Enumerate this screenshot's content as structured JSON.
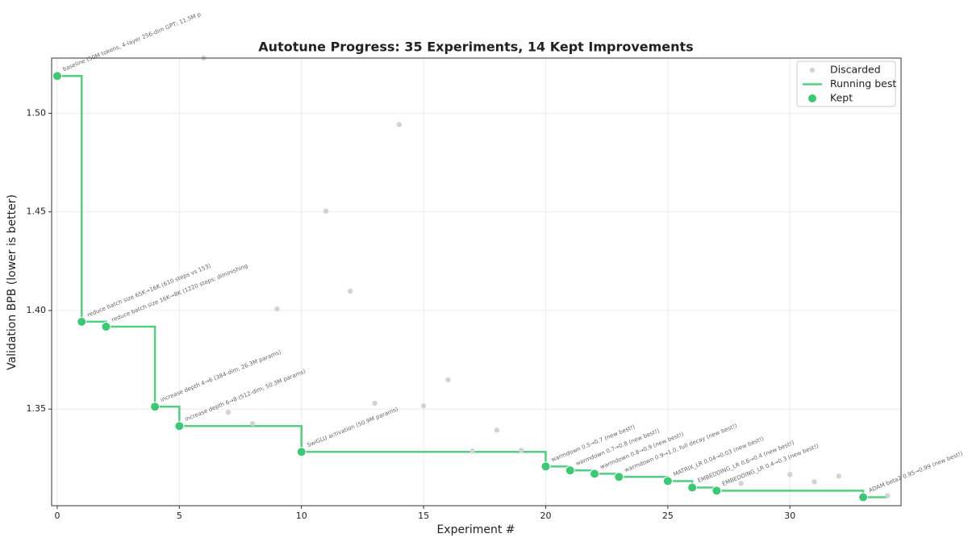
{
  "chart_data": {
    "type": "scatter",
    "title": "Autotune Progress: 35 Experiments, 14 Kept Improvements",
    "xlabel": "Experiment #",
    "ylabel": "Validation BPB (lower is better)",
    "xlim": [
      -0.23,
      34.55
    ],
    "ylim": [
      1.301,
      1.528
    ],
    "xticks": [
      0,
      5,
      10,
      15,
      20,
      25,
      30
    ],
    "yticks": [
      1.35,
      {
        "value": 1.4,
        "label": "1.40"
      },
      1.45,
      {
        "value": 1.5,
        "label": "1.50"
      }
    ],
    "grid": true,
    "legend": "upper right",
    "series": [
      {
        "name": "Discarded",
        "kind": "points",
        "color": "#d3d3d3",
        "x": [
          6,
          7,
          8,
          9,
          11,
          12,
          13,
          14,
          15,
          16,
          17,
          18,
          19,
          28,
          30,
          31,
          32,
          34
        ],
        "values": [
          1.528,
          1.3484,
          1.3426,
          1.4008,
          1.4504,
          1.4098,
          1.3529,
          1.4943,
          1.3516,
          1.3648,
          1.3287,
          1.3393,
          1.3291,
          1.3123,
          1.3168,
          1.3131,
          1.316,
          1.3061
        ]
      },
      {
        "name": "Running best",
        "kind": "step",
        "color": "#50d080",
        "x": [
          0,
          1,
          2,
          4,
          5,
          10,
          20,
          21,
          22,
          23,
          25,
          26,
          27,
          33,
          34
        ],
        "values": [
          1.5189,
          1.3943,
          1.3918,
          1.3512,
          1.3414,
          1.3283,
          1.3209,
          1.3189,
          1.3172,
          1.3156,
          1.3135,
          1.3102,
          1.3086,
          1.3053,
          1.3053
        ]
      },
      {
        "name": "Kept",
        "kind": "points",
        "color": "#3cc974",
        "x": [
          0,
          1,
          2,
          4,
          5,
          10,
          20,
          21,
          22,
          23,
          25,
          26,
          27,
          33
        ],
        "values": [
          1.5189,
          1.3943,
          1.3918,
          1.3512,
          1.3414,
          1.3283,
          1.3209,
          1.3189,
          1.3172,
          1.3156,
          1.3135,
          1.3102,
          1.3086,
          1.3053
        ],
        "annotations": [
          "baseline (50M tokens, 4-layer 256-dim GPT; 11.5M p",
          "reduce batch size 65K→16K (610 steps vs 153)",
          "reduce batch size 16K→8K (1220 steps; diminishing",
          "increase depth 4→6 (384-dim; 26.3M params)",
          "increase depth 6→8 (512-dim; 50.3M params)",
          "SwiGLU activation (50.9M params)",
          "warmdown 0.5→0.7 (new best!)",
          "warmdown 0.7→0.8 (new best!)",
          "warmdown 0.8→0.9 (new best!)",
          "warmdown 0.9→1.0, full decay (new best!)",
          "MATRIX_LR 0.04→0.03 (new best!)",
          "EMBEDDING_LR 0.6→0.4 (new best!)",
          "EMBEDDING_LR 0.4→0.3 (new best!)",
          "ADAM beta2 0.95→0.99 (new best!)"
        ]
      }
    ]
  }
}
